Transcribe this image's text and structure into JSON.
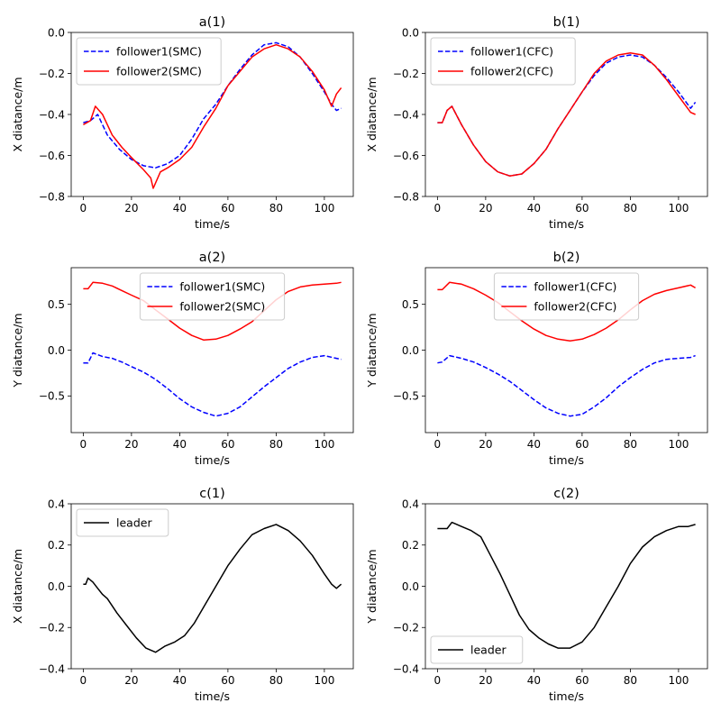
{
  "chart_data": [
    {
      "type": "line",
      "title": "a(1)",
      "xlabel": "time/s",
      "ylabel": "X diatance/m",
      "xlim": [
        -5,
        112
      ],
      "ylim": [
        -0.8,
        0.0
      ],
      "xticks": [
        "0",
        "20",
        "40",
        "60",
        "80",
        "100"
      ],
      "xtick_values": [
        0,
        20,
        40,
        60,
        80,
        100
      ],
      "yticks": [
        "−0.8",
        "−0.6",
        "−0.4",
        "−0.2",
        "0.0"
      ],
      "ytick_values": [
        -0.8,
        -0.6,
        -0.4,
        -0.2,
        0.0
      ],
      "legend": "top-left",
      "series": [
        {
          "name": "follower1(SMC)",
          "color": "#0000ff",
          "dash": "dashed",
          "x": [
            0,
            3,
            6,
            10,
            15,
            20,
            25,
            30,
            35,
            40,
            45,
            50,
            55,
            60,
            65,
            70,
            75,
            80,
            85,
            90,
            95,
            100,
            103,
            105,
            107
          ],
          "y": [
            -0.44,
            -0.43,
            -0.4,
            -0.5,
            -0.57,
            -0.62,
            -0.65,
            -0.66,
            -0.64,
            -0.6,
            -0.52,
            -0.42,
            -0.35,
            -0.26,
            -0.18,
            -0.11,
            -0.06,
            -0.05,
            -0.07,
            -0.12,
            -0.2,
            -0.29,
            -0.35,
            -0.38,
            -0.37
          ]
        },
        {
          "name": "follower2(SMC)",
          "color": "#ff0000",
          "dash": "solid",
          "x": [
            0,
            3,
            5,
            8,
            12,
            16,
            20,
            25,
            28,
            29,
            32,
            35,
            40,
            45,
            50,
            55,
            60,
            65,
            70,
            75,
            80,
            85,
            90,
            95,
            100,
            103,
            105,
            107
          ],
          "y": [
            -0.45,
            -0.43,
            -0.36,
            -0.4,
            -0.5,
            -0.56,
            -0.61,
            -0.67,
            -0.71,
            -0.76,
            -0.68,
            -0.66,
            -0.62,
            -0.56,
            -0.46,
            -0.37,
            -0.26,
            -0.19,
            -0.12,
            -0.08,
            -0.06,
            -0.08,
            -0.12,
            -0.19,
            -0.28,
            -0.36,
            -0.3,
            -0.27
          ]
        }
      ]
    },
    {
      "type": "line",
      "title": "b(1)",
      "xlabel": "time/s",
      "ylabel": "X diatance/m",
      "xlim": [
        -5,
        112
      ],
      "ylim": [
        -0.8,
        0.0
      ],
      "xticks": [
        "0",
        "20",
        "40",
        "60",
        "80",
        "100"
      ],
      "xtick_values": [
        0,
        20,
        40,
        60,
        80,
        100
      ],
      "yticks": [
        "−0.8",
        "−0.6",
        "−0.4",
        "−0.2",
        "0.0"
      ],
      "ytick_values": [
        -0.8,
        -0.6,
        -0.4,
        -0.2,
        0.0
      ],
      "legend": "top-left",
      "series": [
        {
          "name": "follower1(CFC)",
          "color": "#0000ff",
          "dash": "dashed",
          "x": [
            0,
            2,
            4,
            6,
            10,
            15,
            20,
            25,
            30,
            35,
            40,
            45,
            50,
            55,
            60,
            65,
            70,
            75,
            80,
            85,
            90,
            95,
            100,
            105,
            107
          ],
          "y": [
            -0.44,
            -0.44,
            -0.38,
            -0.36,
            -0.45,
            -0.55,
            -0.63,
            -0.68,
            -0.7,
            -0.69,
            -0.64,
            -0.57,
            -0.47,
            -0.38,
            -0.29,
            -0.21,
            -0.15,
            -0.12,
            -0.11,
            -0.12,
            -0.16,
            -0.22,
            -0.29,
            -0.37,
            -0.34
          ]
        },
        {
          "name": "follower2(CFC)",
          "color": "#ff0000",
          "dash": "solid",
          "x": [
            0,
            2,
            4,
            6,
            10,
            15,
            20,
            25,
            30,
            35,
            40,
            45,
            50,
            55,
            60,
            65,
            70,
            75,
            80,
            85,
            90,
            95,
            100,
            105,
            107
          ],
          "y": [
            -0.44,
            -0.44,
            -0.38,
            -0.36,
            -0.45,
            -0.55,
            -0.63,
            -0.68,
            -0.7,
            -0.69,
            -0.64,
            -0.57,
            -0.47,
            -0.38,
            -0.29,
            -0.2,
            -0.14,
            -0.11,
            -0.1,
            -0.11,
            -0.16,
            -0.23,
            -0.31,
            -0.39,
            -0.4
          ]
        }
      ]
    },
    {
      "type": "line",
      "title": "a(2)",
      "xlabel": "time/s",
      "ylabel": "Y diatance/m",
      "xlim": [
        -5,
        112
      ],
      "ylim": [
        -0.9,
        0.9
      ],
      "xticks": [
        "0",
        "20",
        "40",
        "60",
        "80",
        "100"
      ],
      "xtick_values": [
        0,
        20,
        40,
        60,
        80,
        100
      ],
      "yticks": [
        "−0.5",
        "0.0",
        "0.5"
      ],
      "ytick_values": [
        -0.5,
        0.0,
        0.5
      ],
      "legend": "top-center",
      "series": [
        {
          "name": "follower1(SMC)",
          "color": "#0000ff",
          "dash": "dashed",
          "x": [
            0,
            2,
            4,
            8,
            12,
            16,
            20,
            25,
            30,
            35,
            40,
            45,
            50,
            55,
            60,
            65,
            70,
            75,
            80,
            85,
            90,
            95,
            100,
            105,
            107
          ],
          "y": [
            -0.14,
            -0.14,
            -0.03,
            -0.07,
            -0.09,
            -0.13,
            -0.18,
            -0.24,
            -0.32,
            -0.42,
            -0.53,
            -0.62,
            -0.68,
            -0.72,
            -0.69,
            -0.62,
            -0.51,
            -0.4,
            -0.3,
            -0.2,
            -0.13,
            -0.08,
            -0.06,
            -0.09,
            -0.1
          ]
        },
        {
          "name": "follower2(SMC)",
          "color": "#ff0000",
          "dash": "solid",
          "x": [
            0,
            2,
            4,
            8,
            12,
            16,
            20,
            25,
            30,
            35,
            40,
            45,
            50,
            55,
            60,
            65,
            70,
            75,
            80,
            85,
            90,
            95,
            100,
            105,
            107
          ],
          "y": [
            0.67,
            0.67,
            0.74,
            0.73,
            0.7,
            0.65,
            0.6,
            0.54,
            0.44,
            0.34,
            0.24,
            0.16,
            0.11,
            0.12,
            0.16,
            0.23,
            0.31,
            0.43,
            0.55,
            0.64,
            0.69,
            0.71,
            0.72,
            0.73,
            0.74
          ]
        }
      ]
    },
    {
      "type": "line",
      "title": "b(2)",
      "xlabel": "time/s",
      "ylabel": "Y diatance/m",
      "xlim": [
        -5,
        112
      ],
      "ylim": [
        -0.9,
        0.9
      ],
      "xticks": [
        "0",
        "20",
        "40",
        "60",
        "80",
        "100"
      ],
      "xtick_values": [
        0,
        20,
        40,
        60,
        80,
        100
      ],
      "yticks": [
        "−0.5",
        "0.0",
        "0.5"
      ],
      "ytick_values": [
        -0.5,
        0.0,
        0.5
      ],
      "legend": "top-center",
      "series": [
        {
          "name": "follower1(CFC)",
          "color": "#0000ff",
          "dash": "dashed",
          "x": [
            0,
            2,
            5,
            10,
            15,
            20,
            25,
            30,
            35,
            40,
            45,
            50,
            55,
            60,
            65,
            70,
            75,
            80,
            85,
            90,
            95,
            100,
            105,
            107
          ],
          "y": [
            -0.14,
            -0.13,
            -0.06,
            -0.09,
            -0.13,
            -0.19,
            -0.26,
            -0.34,
            -0.44,
            -0.54,
            -0.63,
            -0.69,
            -0.72,
            -0.7,
            -0.62,
            -0.52,
            -0.4,
            -0.3,
            -0.21,
            -0.14,
            -0.1,
            -0.09,
            -0.08,
            -0.06
          ]
        },
        {
          "name": "follower2(CFC)",
          "color": "#ff0000",
          "dash": "solid",
          "x": [
            0,
            2,
            5,
            10,
            15,
            20,
            25,
            30,
            35,
            40,
            45,
            50,
            55,
            60,
            65,
            70,
            75,
            80,
            85,
            90,
            95,
            100,
            105,
            107
          ],
          "y": [
            0.66,
            0.66,
            0.74,
            0.72,
            0.67,
            0.6,
            0.52,
            0.42,
            0.32,
            0.23,
            0.16,
            0.12,
            0.1,
            0.12,
            0.17,
            0.24,
            0.33,
            0.44,
            0.54,
            0.61,
            0.65,
            0.68,
            0.71,
            0.68
          ]
        }
      ]
    },
    {
      "type": "line",
      "title": "c(1)",
      "xlabel": "time/s",
      "ylabel": "X diatance/m",
      "xlim": [
        -5,
        112
      ],
      "ylim": [
        -0.4,
        0.4
      ],
      "xticks": [
        "0",
        "20",
        "40",
        "60",
        "80",
        "100"
      ],
      "xtick_values": [
        0,
        20,
        40,
        60,
        80,
        100
      ],
      "yticks": [
        "−0.4",
        "−0.2",
        "0.0",
        "0.2",
        "0.4"
      ],
      "ytick_values": [
        -0.4,
        -0.2,
        0.0,
        0.2,
        0.4
      ],
      "legend": "top-left",
      "series": [
        {
          "name": "leader",
          "color": "#000000",
          "dash": "solid",
          "x": [
            0,
            1,
            2,
            4,
            6,
            8,
            10,
            14,
            18,
            22,
            26,
            30,
            34,
            38,
            42,
            46,
            50,
            55,
            60,
            65,
            70,
            75,
            80,
            85,
            90,
            95,
            100,
            103,
            105,
            107
          ],
          "y": [
            0.01,
            0.01,
            0.04,
            0.02,
            -0.01,
            -0.04,
            -0.06,
            -0.13,
            -0.19,
            -0.25,
            -0.3,
            -0.32,
            -0.29,
            -0.27,
            -0.24,
            -0.18,
            -0.1,
            0.0,
            0.1,
            0.18,
            0.25,
            0.28,
            0.3,
            0.27,
            0.22,
            0.15,
            0.06,
            0.01,
            -0.01,
            0.01
          ]
        }
      ]
    },
    {
      "type": "line",
      "title": "c(2)",
      "xlabel": "time/s",
      "ylabel": "Y diatance/m",
      "xlim": [
        -5,
        112
      ],
      "ylim": [
        -0.4,
        0.4
      ],
      "xticks": [
        "0",
        "20",
        "40",
        "60",
        "80",
        "100"
      ],
      "xtick_values": [
        0,
        20,
        40,
        60,
        80,
        100
      ],
      "yticks": [
        "−0.4",
        "−0.2",
        "0.0",
        "0.2",
        "0.4"
      ],
      "ytick_values": [
        -0.4,
        -0.2,
        0.0,
        0.2,
        0.4
      ],
      "legend": "bottom-left",
      "series": [
        {
          "name": "leader",
          "color": "#000000",
          "dash": "solid",
          "x": [
            0,
            2,
            4,
            6,
            10,
            14,
            18,
            22,
            26,
            30,
            34,
            38,
            42,
            46,
            50,
            55,
            60,
            65,
            70,
            75,
            80,
            85,
            90,
            95,
            100,
            104,
            107
          ],
          "y": [
            0.28,
            0.28,
            0.28,
            0.31,
            0.29,
            0.27,
            0.24,
            0.15,
            0.06,
            -0.04,
            -0.14,
            -0.21,
            -0.25,
            -0.28,
            -0.3,
            -0.3,
            -0.27,
            -0.2,
            -0.1,
            0.0,
            0.11,
            0.19,
            0.24,
            0.27,
            0.29,
            0.29,
            0.3
          ]
        }
      ]
    }
  ]
}
